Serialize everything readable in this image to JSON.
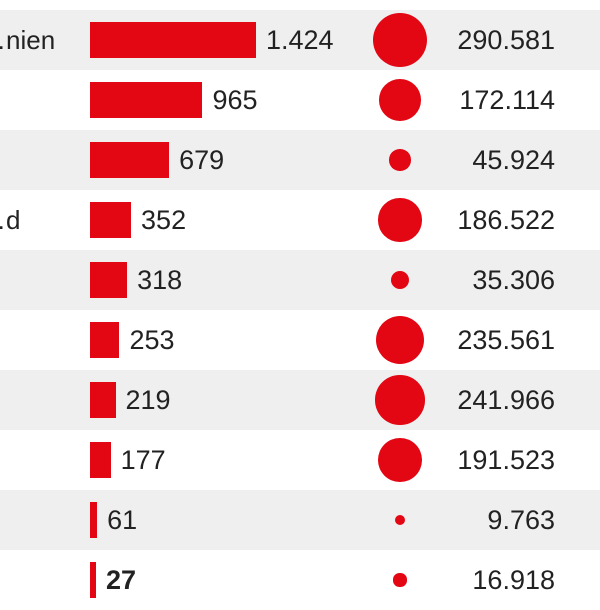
{
  "chart_data": {
    "type": "bar",
    "categories": [
      "…nien",
      "",
      "",
      "…d",
      "",
      "",
      "",
      "",
      "",
      ""
    ],
    "series": [
      {
        "values": [
          1424,
          965,
          679,
          352,
          318,
          253,
          219,
          177,
          61,
          27
        ],
        "labels": [
          "1.424",
          "965",
          "679",
          "352",
          "318",
          "253",
          "219",
          "177",
          "61",
          "27"
        ],
        "highlight_index": 9
      },
      {
        "values": [
          290581,
          172114,
          45924,
          186522,
          35306,
          235561,
          241966,
          191523,
          9763,
          16918
        ],
        "labels": [
          "290.581",
          "172.114",
          "45.924",
          "186.522",
          "35.306",
          "235.561",
          "241.966",
          "191.523",
          "9.763",
          "16.918"
        ]
      }
    ],
    "bar_color": "#e30613",
    "bubble_color": "#e30613",
    "band_color": "#efefef",
    "grid": false
  }
}
